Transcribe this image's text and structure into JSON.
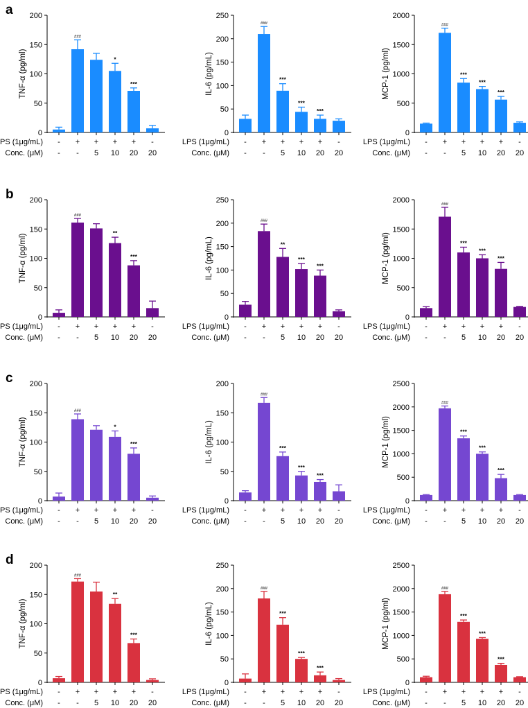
{
  "figure": {
    "rows": [
      {
        "letter": "a",
        "color": "#1a8cff"
      },
      {
        "letter": "b",
        "color": "#6a0f8e"
      },
      {
        "letter": "c",
        "color": "#7547d1"
      },
      {
        "letter": "d",
        "color": "#d9323f"
      }
    ],
    "conditions": {
      "lps_label": "LPS (1μg/mL)",
      "conc_label": "Conc. (μM)",
      "lps": [
        "-",
        "+",
        "+",
        "+",
        "+",
        "-"
      ],
      "conc": [
        "-",
        "-",
        "5",
        "10",
        "20",
        "20"
      ]
    }
  },
  "chart_data": [
    {
      "type": "bar",
      "panel": "a",
      "ylabel": "TNF-α (pg/ml)",
      "ylim": [
        0,
        200
      ],
      "yticks": [
        "0",
        "50",
        "100",
        "150",
        "200"
      ],
      "values": [
        5,
        142,
        124,
        105,
        71,
        7
      ],
      "errors": [
        4,
        16,
        11,
        13,
        5,
        5
      ],
      "sig": [
        "",
        "###",
        "",
        "*",
        "***",
        ""
      ]
    },
    {
      "type": "bar",
      "panel": "a",
      "ylabel": "IL-6 (pg/mL)",
      "ylim": [
        0,
        250
      ],
      "yticks": [
        "0",
        "50",
        "100",
        "150",
        "200",
        "250"
      ],
      "values": [
        29,
        210,
        89,
        44,
        29,
        25
      ],
      "errors": [
        8,
        16,
        15,
        10,
        8,
        4
      ],
      "sig": [
        "",
        "###",
        "***",
        "***",
        "***",
        ""
      ]
    },
    {
      "type": "bar",
      "panel": "a",
      "ylabel": "MCP-1 (pg/ml)",
      "ylim": [
        0,
        2000
      ],
      "yticks": [
        "0",
        "500",
        "1000",
        "1500",
        "2000"
      ],
      "values": [
        150,
        1700,
        850,
        740,
        560,
        165
      ],
      "errors": [
        10,
        80,
        70,
        45,
        55,
        15
      ],
      "sig": [
        "",
        "###",
        "***",
        "***",
        "***",
        ""
      ]
    },
    {
      "type": "bar",
      "panel": "b",
      "ylabel": "TNF-α (pg/ml)",
      "ylim": [
        0,
        200
      ],
      "yticks": [
        "0",
        "50",
        "100",
        "150",
        "200"
      ],
      "values": [
        7,
        161,
        151,
        126,
        88,
        15
      ],
      "errors": [
        5,
        7,
        8,
        10,
        8,
        12
      ],
      "sig": [
        "",
        "###",
        "",
        "**",
        "***",
        ""
      ]
    },
    {
      "type": "bar",
      "panel": "b",
      "ylabel": "IL-6 (pg/mL)",
      "ylim": [
        0,
        250
      ],
      "yticks": [
        "0",
        "50",
        "100",
        "150",
        "200",
        "250"
      ],
      "values": [
        26,
        183,
        128,
        102,
        88,
        12
      ],
      "errors": [
        7,
        15,
        18,
        12,
        12,
        3
      ],
      "sig": [
        "",
        "###",
        "**",
        "***",
        "***",
        ""
      ]
    },
    {
      "type": "bar",
      "panel": "b",
      "ylabel": "MCP-1 (pg/ml)",
      "ylim": [
        0,
        2000
      ],
      "yticks": [
        "0",
        "500",
        "1000",
        "1500",
        "2000"
      ],
      "values": [
        150,
        1710,
        1100,
        1000,
        820,
        170
      ],
      "errors": [
        25,
        160,
        90,
        60,
        110,
        10
      ],
      "sig": [
        "",
        "###",
        "***",
        "***",
        "***",
        ""
      ]
    },
    {
      "type": "bar",
      "panel": "c",
      "ylabel": "TNF-α (pg/ml)",
      "ylim": [
        0,
        200
      ],
      "yticks": [
        "0",
        "50",
        "100",
        "150",
        "200"
      ],
      "values": [
        7,
        139,
        121,
        109,
        80,
        5
      ],
      "errors": [
        6,
        9,
        7,
        10,
        10,
        3
      ],
      "sig": [
        "",
        "###",
        "",
        "*",
        "***",
        ""
      ]
    },
    {
      "type": "bar",
      "panel": "c",
      "ylabel": "IL-6 (pg/mL)",
      "ylim": [
        0,
        200
      ],
      "yticks": [
        "0",
        "50",
        "100",
        "150",
        "200"
      ],
      "values": [
        14,
        167,
        76,
        43,
        32,
        16
      ],
      "errors": [
        3,
        9,
        7,
        7,
        4,
        11
      ],
      "sig": [
        "",
        "###",
        "***",
        "***",
        "***",
        ""
      ]
    },
    {
      "type": "bar",
      "panel": "c",
      "ylabel": "MCP-1 (pg/ml)",
      "ylim": [
        0,
        2500
      ],
      "yticks": [
        "0",
        "500",
        "1000",
        "1500",
        "2000",
        "2500"
      ],
      "values": [
        120,
        1970,
        1330,
        1000,
        480,
        120
      ],
      "errors": [
        10,
        50,
        50,
        40,
        80,
        10
      ],
      "sig": [
        "",
        "###",
        "***",
        "***",
        "***",
        ""
      ]
    },
    {
      "type": "bar",
      "panel": "d",
      "ylabel": "TNF-α (pg/ml)",
      "ylim": [
        0,
        200
      ],
      "yticks": [
        "0",
        "50",
        "100",
        "150",
        "200"
      ],
      "values": [
        7,
        172,
        155,
        134,
        67,
        4
      ],
      "errors": [
        3,
        5,
        16,
        9,
        7,
        2
      ],
      "sig": [
        "",
        "###",
        "",
        "**",
        "***",
        ""
      ]
    },
    {
      "type": "bar",
      "panel": "d",
      "ylabel": "IL-6 (pg/mL)",
      "ylim": [
        0,
        250
      ],
      "yticks": [
        "0",
        "50",
        "100",
        "150",
        "200",
        "250"
      ],
      "values": [
        8,
        179,
        123,
        50,
        15,
        5
      ],
      "errors": [
        10,
        15,
        15,
        3,
        7,
        3
      ],
      "sig": [
        "",
        "###",
        "***",
        "***",
        "***",
        ""
      ]
    },
    {
      "type": "bar",
      "panel": "d",
      "ylabel": "MCP-1 (pg/ml)",
      "ylim": [
        0,
        2500
      ],
      "yticks": [
        "0",
        "500",
        "1000",
        "1500",
        "2000",
        "2500"
      ],
      "values": [
        110,
        1880,
        1290,
        930,
        370,
        110
      ],
      "errors": [
        20,
        60,
        40,
        25,
        35,
        10
      ],
      "sig": [
        "",
        "###",
        "***",
        "***",
        "***",
        ""
      ]
    }
  ]
}
